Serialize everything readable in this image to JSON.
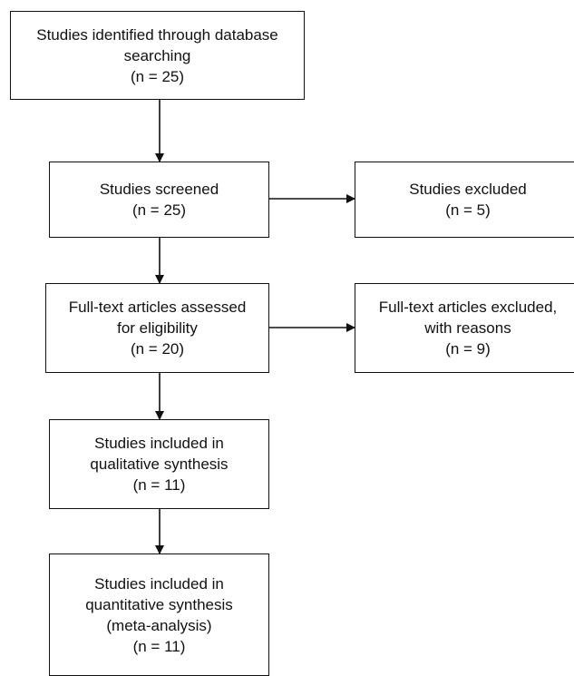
{
  "boxes": {
    "identified": {
      "lines": [
        "Studies identified through database",
        "searching",
        "(n = 25)"
      ]
    },
    "screened": {
      "lines": [
        "Studies screened",
        "(n = 25)"
      ]
    },
    "excluded": {
      "lines": [
        "Studies excluded",
        "(n = 5)"
      ]
    },
    "fulltext": {
      "lines": [
        "Full-text articles assessed",
        "for eligibility",
        "(n = 20)"
      ]
    },
    "fulltext_excluded": {
      "lines": [
        "Full-text articles excluded,",
        "with reasons",
        "(n = 9)"
      ]
    },
    "qualitative": {
      "lines": [
        "Studies included in",
        "qualitative synthesis",
        "(n = 11)"
      ]
    },
    "quantitative": {
      "lines": [
        "Studies included in",
        "quantitative synthesis",
        "(meta-analysis)",
        "(n = 11)"
      ]
    }
  }
}
